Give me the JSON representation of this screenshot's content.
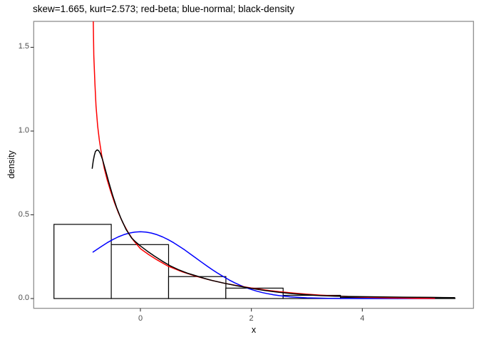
{
  "chart_data": {
    "type": "histogram_with_density_curves",
    "title": "skew=1.665, kurt=2.573; red-beta; blue-normal; black-density",
    "xlabel": "x",
    "ylabel": "density",
    "stats": {
      "skew": 1.665,
      "kurt": 2.573
    },
    "colors": {
      "beta": "#ff0000",
      "normal": "#0000ff",
      "density": "#000000",
      "bar_fill": "#ffffff",
      "bar_stroke": "#000000",
      "panel_border": "#8f8f8f",
      "tick": "#333333",
      "tick_label": "#4d4d4d",
      "text": "#000000"
    },
    "xlim": [
      -1.923,
      6.004
    ],
    "ylim": [
      -0.0583,
      1.655
    ],
    "grid": false,
    "legend": "none",
    "x_ticks": [
      {
        "value": 0,
        "label": "0"
      },
      {
        "value": 2,
        "label": "2"
      },
      {
        "value": 4,
        "label": "4"
      }
    ],
    "y_ticks": [
      {
        "value": 0.0,
        "label": "0.0"
      },
      {
        "value": 0.5,
        "label": "0.5"
      },
      {
        "value": 1.0,
        "label": "1.0"
      },
      {
        "value": 1.5,
        "label": "1.5"
      }
    ],
    "histogram": {
      "bin_start": -1.558,
      "bin_width": 1.0326,
      "densities": [
        0.443,
        0.322,
        0.131,
        0.062,
        0.019,
        0.006,
        0.003
      ]
    },
    "series": [
      {
        "name": "normal",
        "color_key": "normal",
        "points": [
          [
            -0.86,
            0.276
          ],
          [
            -0.78,
            0.294
          ],
          [
            -0.7,
            0.312
          ],
          [
            -0.6,
            0.333
          ],
          [
            -0.5,
            0.352
          ],
          [
            -0.4,
            0.368
          ],
          [
            -0.3,
            0.381
          ],
          [
            -0.2,
            0.391
          ],
          [
            -0.1,
            0.397
          ],
          [
            0,
            0.399
          ],
          [
            0.1,
            0.397
          ],
          [
            0.2,
            0.391
          ],
          [
            0.3,
            0.381
          ],
          [
            0.4,
            0.368
          ],
          [
            0.5,
            0.352
          ],
          [
            0.6,
            0.333
          ],
          [
            0.7,
            0.312
          ],
          [
            0.8,
            0.29
          ],
          [
            0.9,
            0.266
          ],
          [
            1.0,
            0.242
          ],
          [
            1.1,
            0.218
          ],
          [
            1.2,
            0.194
          ],
          [
            1.3,
            0.171
          ],
          [
            1.4,
            0.15
          ],
          [
            1.5,
            0.13
          ],
          [
            1.6,
            0.111
          ],
          [
            1.7,
            0.094
          ],
          [
            1.8,
            0.079
          ],
          [
            1.9,
            0.0656
          ],
          [
            2.0,
            0.054
          ],
          [
            2.1,
            0.044
          ],
          [
            2.2,
            0.0355
          ],
          [
            2.3,
            0.0283
          ],
          [
            2.4,
            0.0224
          ],
          [
            2.5,
            0.0175
          ],
          [
            2.6,
            0.0136
          ],
          [
            2.7,
            0.0104
          ],
          [
            2.8,
            0.0079
          ],
          [
            2.9,
            0.006
          ],
          [
            3.0,
            0.0044
          ],
          [
            3.2,
            0.0024
          ],
          [
            3.4,
            0.0012
          ],
          [
            3.6,
            0.0006
          ],
          [
            3.8,
            0.0003
          ],
          [
            4.0,
            0.0001
          ],
          [
            4.4,
            0.0
          ],
          [
            4.8,
            0.0
          ],
          [
            5.31,
            0.0
          ]
        ]
      },
      {
        "name": "beta",
        "color_key": "beta",
        "points": [
          [
            -0.856,
            1.9
          ],
          [
            -0.852,
            1.7
          ],
          [
            -0.84,
            1.45
          ],
          [
            -0.82,
            1.28
          ],
          [
            -0.8,
            1.15
          ],
          [
            -0.77,
            1.03
          ],
          [
            -0.74,
            0.945
          ],
          [
            -0.7,
            0.86
          ],
          [
            -0.65,
            0.775
          ],
          [
            -0.6,
            0.71
          ],
          [
            -0.54,
            0.645
          ],
          [
            -0.47,
            0.575
          ],
          [
            -0.4,
            0.515
          ],
          [
            -0.32,
            0.455
          ],
          [
            -0.23,
            0.4
          ],
          [
            -0.12,
            0.345
          ],
          [
            0,
            0.298
          ],
          [
            0.15,
            0.262
          ],
          [
            0.3,
            0.231
          ],
          [
            0.5,
            0.193
          ],
          [
            0.75,
            0.16
          ],
          [
            1.0,
            0.133
          ],
          [
            1.25,
            0.111
          ],
          [
            1.5,
            0.0925
          ],
          [
            1.75,
            0.0765
          ],
          [
            2.0,
            0.0625
          ],
          [
            2.25,
            0.051
          ],
          [
            2.5,
            0.041
          ],
          [
            2.75,
            0.033
          ],
          [
            3.0,
            0.026
          ],
          [
            3.25,
            0.0205
          ],
          [
            3.5,
            0.0155
          ],
          [
            3.75,
            0.0115
          ],
          [
            4.0,
            0.0085
          ],
          [
            4.25,
            0.006
          ],
          [
            4.5,
            0.004
          ],
          [
            4.75,
            0.0025
          ],
          [
            5.0,
            0.0013
          ],
          [
            5.15,
            0.0007
          ],
          [
            5.31,
            0.0002
          ]
        ]
      },
      {
        "name": "density",
        "color_key": "density",
        "points": [
          [
            -0.87,
            0.775
          ],
          [
            -0.85,
            0.822
          ],
          [
            -0.83,
            0.856
          ],
          [
            -0.81,
            0.878
          ],
          [
            -0.78,
            0.888
          ],
          [
            -0.75,
            0.882
          ],
          [
            -0.72,
            0.865
          ],
          [
            -0.68,
            0.828
          ],
          [
            -0.63,
            0.768
          ],
          [
            -0.57,
            0.695
          ],
          [
            -0.5,
            0.615
          ],
          [
            -0.43,
            0.545
          ],
          [
            -0.35,
            0.478
          ],
          [
            -0.26,
            0.414
          ],
          [
            -0.16,
            0.362
          ],
          [
            -0.08,
            0.336
          ],
          [
            0,
            0.314
          ],
          [
            0.12,
            0.284
          ],
          [
            0.25,
            0.254
          ],
          [
            0.4,
            0.222
          ],
          [
            0.55,
            0.193
          ],
          [
            0.7,
            0.17
          ],
          [
            0.85,
            0.151
          ],
          [
            1.0,
            0.136
          ],
          [
            1.15,
            0.121
          ],
          [
            1.3,
            0.107
          ],
          [
            1.5,
            0.0925
          ],
          [
            1.75,
            0.0755
          ],
          [
            2.0,
            0.0605
          ],
          [
            2.25,
            0.0475
          ],
          [
            2.5,
            0.037
          ],
          [
            2.75,
            0.0285
          ],
          [
            3.0,
            0.022
          ],
          [
            3.25,
            0.0175
          ],
          [
            3.5,
            0.0145
          ],
          [
            3.75,
            0.0125
          ],
          [
            4.0,
            0.011
          ],
          [
            4.25,
            0.01
          ],
          [
            4.5,
            0.009
          ],
          [
            4.75,
            0.0082
          ],
          [
            5.0,
            0.0075
          ],
          [
            5.25,
            0.0068
          ],
          [
            5.45,
            0.006
          ],
          [
            5.67,
            0.005
          ]
        ]
      }
    ]
  }
}
